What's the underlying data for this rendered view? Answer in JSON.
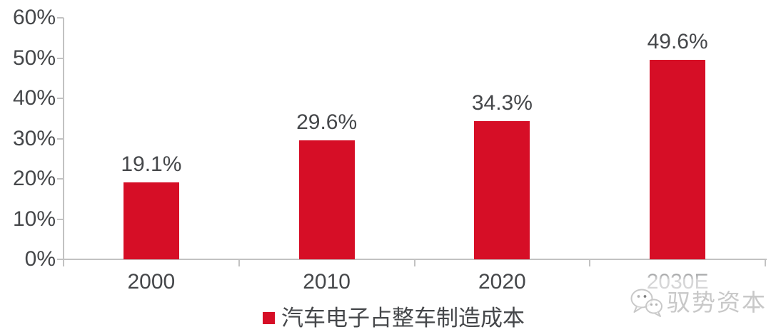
{
  "chart_data": {
    "type": "bar",
    "title": "",
    "categories": [
      "2000",
      "2010",
      "2020",
      "2030E"
    ],
    "values": [
      19.1,
      29.6,
      34.3,
      49.6
    ],
    "value_labels": [
      "19.1%",
      "29.6%",
      "34.3%",
      "49.6%"
    ],
    "series": [
      {
        "name": "汽车电子占整车制造成本",
        "values": [
          19.1,
          29.6,
          34.3,
          49.6
        ]
      }
    ],
    "xlabel": "",
    "ylabel": "",
    "ylim": [
      0,
      60
    ],
    "yticks": [
      "0%",
      "10%",
      "20%",
      "30%",
      "40%",
      "50%",
      "60%"
    ],
    "grid": false,
    "legend_position": "bottom-center",
    "bar_color": "#d60e26",
    "text_color": "#45474a",
    "axis_color": "#c2c2c2"
  },
  "legend": {
    "label": "汽车电子占整车制造成本"
  },
  "watermark": {
    "text": "驭势资本",
    "icon": "wechat-logo-icon",
    "color": "#c8c8c8"
  }
}
